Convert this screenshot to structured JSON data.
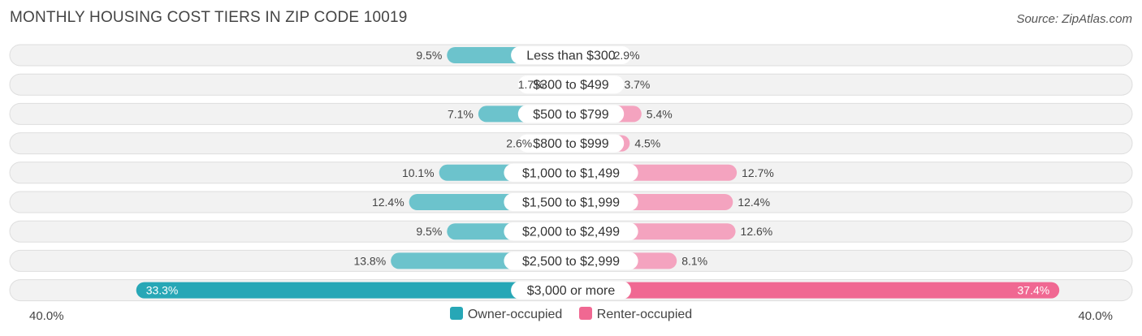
{
  "chart_data": {
    "type": "bar",
    "orientation": "horizontal-diverging",
    "title": "MONTHLY HOUSING COST TIERS IN ZIP CODE 10019",
    "source": "Source: ZipAtlas.com",
    "categories": [
      "Less than $300",
      "$300 to $499",
      "$500 to $799",
      "$800 to $999",
      "$1,000 to $1,499",
      "$1,500 to $1,999",
      "$2,000 to $2,499",
      "$2,500 to $2,999",
      "$3,000 or more"
    ],
    "series": [
      {
        "name": "Owner-occupied",
        "color": "#6cc3cc",
        "highlight_color": "#27a7b6",
        "values": [
          9.5,
          1.7,
          7.1,
          2.6,
          10.1,
          12.4,
          9.5,
          13.8,
          33.3
        ],
        "labels": [
          "9.5%",
          "1.7%",
          "7.1%",
          "2.6%",
          "10.1%",
          "12.4%",
          "9.5%",
          "13.8%",
          "33.3%"
        ]
      },
      {
        "name": "Renter-occupied",
        "color": "#f4a3bf",
        "highlight_color": "#f06892",
        "values": [
          2.9,
          3.7,
          5.4,
          4.5,
          12.7,
          12.4,
          12.6,
          8.1,
          37.4
        ],
        "labels": [
          "2.9%",
          "3.7%",
          "5.4%",
          "4.5%",
          "12.7%",
          "12.4%",
          "12.6%",
          "8.1%",
          "37.4%"
        ]
      }
    ],
    "axis": {
      "max": 40.0,
      "left_label": "40.0%",
      "right_label": "40.0%"
    },
    "legend": [
      "Owner-occupied",
      "Renter-occupied"
    ]
  }
}
